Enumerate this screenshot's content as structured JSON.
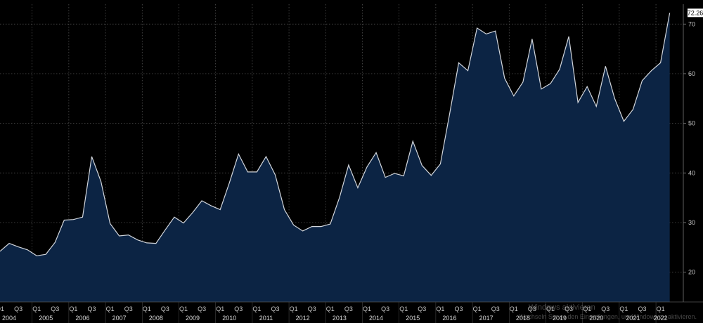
{
  "chart_data": {
    "type": "area",
    "title": "",
    "xlabel": "",
    "ylabel": "",
    "ylim": [
      14,
      74
    ],
    "yticks": [
      20,
      30,
      40,
      50,
      60,
      70
    ],
    "grid": true,
    "colors": {
      "background": "#000000",
      "fill": "#0c2444",
      "line": "#d2d6dc",
      "grid": "#5a5a5a",
      "text": "#c8c8c8",
      "label_box": "#ffffff"
    },
    "last_value_label": "72.26",
    "quarter_tick_labels": [
      "Q1",
      "Q3"
    ],
    "years": [
      "2004",
      "2005",
      "2006",
      "2007",
      "2008",
      "2009",
      "2010",
      "2011",
      "2012",
      "2013",
      "2014",
      "2015",
      "2016",
      "2017",
      "2018",
      "2019",
      "2020",
      "2021",
      "2022"
    ],
    "x_start": "2004-Q1",
    "values": [
      24.2,
      25.8,
      25.1,
      24.5,
      23.3,
      23.6,
      26.0,
      30.5,
      30.6,
      31.1,
      43.3,
      38.3,
      29.8,
      27.3,
      27.5,
      26.5,
      25.9,
      25.8,
      28.5,
      31.1,
      29.9,
      32.0,
      34.4,
      33.4,
      32.6,
      38.0,
      43.8,
      40.2,
      40.2,
      43.3,
      39.6,
      32.6,
      29.5,
      28.3,
      29.2,
      29.2,
      29.7,
      35.0,
      41.6,
      37.0,
      41.2,
      44.1,
      39.1,
      39.9,
      39.4,
      46.4,
      41.5,
      39.5,
      41.8,
      51.8,
      62.2,
      60.6,
      69.2,
      68.0,
      68.6,
      59.1,
      55.5,
      58.3,
      67.0,
      56.9,
      58.0,
      60.9,
      67.5,
      54.2,
      57.4,
      53.4,
      61.5,
      55.0,
      50.4,
      52.8,
      58.6,
      60.6,
      62.2,
      72.26
    ]
  },
  "watermark": {
    "line1": "Windows aktivieren",
    "line2": "Wechseln Sie zu den Einstellungen, um Windows zu aktivieren."
  }
}
